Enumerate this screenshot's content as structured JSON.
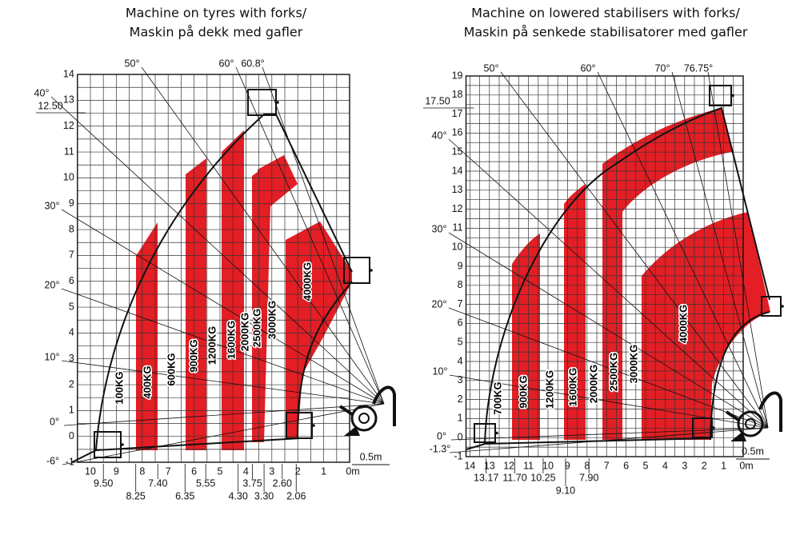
{
  "panels": [
    {
      "title": [
        "Machine on tyres with forks/",
        "Maskin på dekk med gafler"
      ],
      "y_labels": [
        "-1",
        "0",
        "1",
        "2",
        "3",
        "4",
        "5",
        "6",
        "7",
        "8",
        "9",
        "10",
        "11",
        "12",
        "13",
        "14"
      ],
      "x_labels": [
        "10",
        "9",
        "8",
        "7",
        "6",
        "5",
        "4",
        "3",
        "2",
        "1",
        "0m"
      ],
      "x_sub_labels": [
        "9.50",
        "8.25",
        "7.40",
        "6.35",
        "5.55",
        "4.30",
        "3.75",
        "3.30",
        "2.60",
        "2.06"
      ],
      "angle_labels": [
        "-6°",
        "0°",
        "10°",
        "20°",
        "30°",
        "40°",
        "50°",
        "60°",
        "60.8°"
      ],
      "max_height_label": "12.50",
      "loads": [
        "100KG",
        "400KG",
        "600KG",
        "900KG",
        "1200KG",
        "1600KG",
        "2000KG",
        "2500KG",
        "3000KG",
        "4000KG"
      ],
      "scale_label": "0.5m"
    },
    {
      "title": [
        "Machine on lowered stabilisers with forks/",
        "Maskin på senkede stabilisatorer med gafler"
      ],
      "y_labels": [
        "-1",
        "0",
        "1",
        "2",
        "3",
        "4",
        "5",
        "6",
        "7",
        "8",
        "9",
        "10",
        "11",
        "12",
        "13",
        "14",
        "15",
        "16",
        "17",
        "18",
        "19"
      ],
      "x_labels": [
        "14",
        "13",
        "12",
        "11",
        "10",
        "9",
        "8",
        "7",
        "6",
        "5",
        "4",
        "3",
        "2",
        "1",
        "0m"
      ],
      "x_sub_labels": [
        "13.17",
        "11.70",
        "10.25",
        "9.10",
        "7.90"
      ],
      "angle_labels": [
        "-1.3°",
        "0°",
        "10°",
        "20°",
        "30°",
        "40°",
        "50°",
        "60°",
        "70°",
        "76.75°"
      ],
      "max_height_label": "17.50",
      "loads": [
        "700KG",
        "900KG",
        "1200KG",
        "1600KG",
        "2000KG",
        "2500KG",
        "3000KG",
        "4000KG"
      ],
      "scale_label": "0.5m"
    }
  ]
}
